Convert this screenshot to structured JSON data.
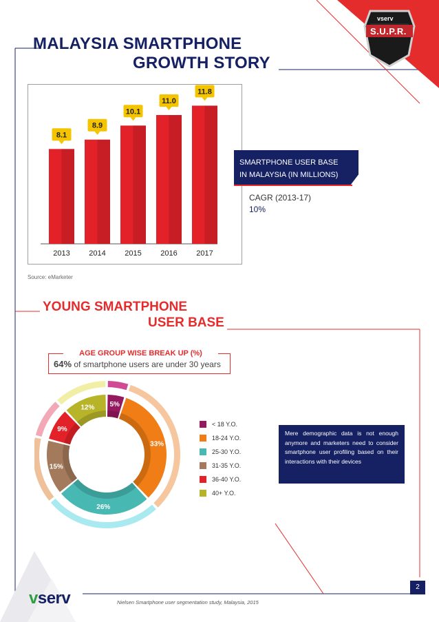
{
  "header": {
    "title_line1": "MALAYSIA SMARTPHONE",
    "title_line2": "GROWTH STORY",
    "badge_brand": "vserv",
    "badge_text": "S.U.P.R."
  },
  "chart_data": {
    "type": "bar",
    "categories": [
      "2013",
      "2014",
      "2015",
      "2016",
      "2017"
    ],
    "values": [
      8.1,
      8.9,
      10.1,
      11.0,
      11.8
    ],
    "value_labels": [
      "8.1",
      "8.9",
      "10.1",
      "11.0",
      "11.8"
    ],
    "ylim": [
      0,
      13
    ],
    "color": "#e32129",
    "label_color": "#f5c400"
  },
  "callout": {
    "line1": "SMARTPHONE USER BASE",
    "line2": "IN MALAYSIA (IN MILLIONS)",
    "cagr_label": "CAGR (2013-17)",
    "cagr_value": "10%"
  },
  "source": "Source: eMarketer",
  "section2": {
    "title_line1": "YOUNG SMARTPHONE",
    "title_line2": "USER BASE",
    "box_title": "AGE GROUP WISE BREAK UP (%)",
    "box_value": "64%",
    "box_text": "of smartphone users are under 30 years"
  },
  "donut": {
    "segments": [
      {
        "label": "< 18 Y.O.",
        "value": 5,
        "text": "5%",
        "color": "#95195e",
        "light": "#d14a94"
      },
      {
        "label": "18-24 Y.O.",
        "value": 33,
        "text": "33%",
        "color": "#f07d16",
        "light": "#f6c79e"
      },
      {
        "label": "25-30 Y.O.",
        "value": 26,
        "text": "26%",
        "color": "#47b8b2",
        "light": "#a8eaf0"
      },
      {
        "label": "31-35 Y.O.",
        "value": 15,
        "text": "15%",
        "color": "#a37a5b",
        "light": "#efc19a"
      },
      {
        "label": "36-40 Y.O.",
        "value": 9,
        "text": "9%",
        "color": "#e32129",
        "light": "#f2a8b6"
      },
      {
        "label": "40+ Y.O.",
        "value": 12,
        "text": "12%",
        "color": "#b7b42a",
        "light": "#f1efa6"
      }
    ]
  },
  "note": "Mere demographic data is not enough anymore and marketers need to consider smartphone user profiling based on their interactions with their devices",
  "footer": {
    "logo": "vserv",
    "citation": "Nielsen Smartphone user segmentation study, Malaysia, 2015",
    "page": "2"
  }
}
